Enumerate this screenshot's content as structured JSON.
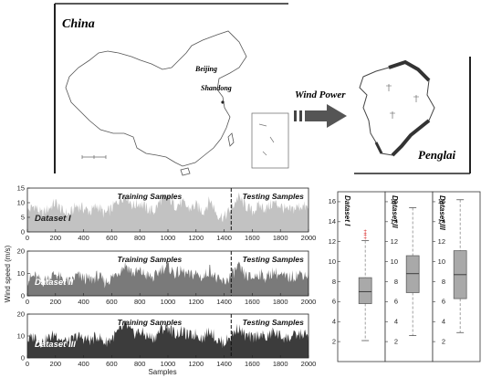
{
  "map": {
    "china_label": "China",
    "beijing_label": "Beijing",
    "shandong_label": "Shandong",
    "arrow_label": "Wind Power",
    "penglai_label": "Penglai"
  },
  "timeseries": {
    "ylabel": "Wind speed (m/s)",
    "xlabel": "Samples",
    "training_label": "Training Samples",
    "testing_label": "Testing Samples",
    "split_at": 1450
  },
  "boxplots": {
    "ylabel": "Wind speed(m/s)"
  },
  "colors": {
    "dataset1": "#c2c2c2",
    "dataset2": "#7a7a7a",
    "dataset3": "#3c3c3c",
    "box": "#a9a9a9",
    "outlier": "#d62020"
  },
  "chart_data": [
    {
      "type": "area",
      "name": "Dataset I",
      "title": "Dataset I",
      "x_range": [
        0,
        2000
      ],
      "ylim": [
        0,
        15
      ],
      "yticks": [
        0,
        5,
        10,
        15
      ],
      "xticks": [
        0,
        200,
        400,
        600,
        800,
        1000,
        1200,
        1400,
        1600,
        1800,
        2000
      ],
      "profile": [
        [
          0,
          7
        ],
        [
          50,
          9
        ],
        [
          100,
          6
        ],
        [
          150,
          8
        ],
        [
          200,
          10
        ],
        [
          250,
          7
        ],
        [
          300,
          6
        ],
        [
          350,
          9
        ],
        [
          400,
          8
        ],
        [
          450,
          7
        ],
        [
          500,
          9
        ],
        [
          550,
          6
        ],
        [
          600,
          8
        ],
        [
          650,
          11
        ],
        [
          700,
          13
        ],
        [
          750,
          9
        ],
        [
          800,
          10
        ],
        [
          850,
          8
        ],
        [
          900,
          7
        ],
        [
          950,
          11
        ],
        [
          1000,
          12
        ],
        [
          1050,
          9
        ],
        [
          1100,
          10
        ],
        [
          1150,
          8
        ],
        [
          1200,
          9
        ],
        [
          1250,
          7
        ],
        [
          1300,
          11
        ],
        [
          1350,
          6
        ],
        [
          1400,
          5
        ],
        [
          1450,
          8
        ],
        [
          1500,
          12
        ],
        [
          1550,
          9
        ],
        [
          1600,
          7
        ],
        [
          1650,
          9
        ],
        [
          1700,
          8
        ],
        [
          1750,
          10
        ],
        [
          1800,
          9
        ],
        [
          1850,
          7
        ],
        [
          1900,
          8
        ],
        [
          1950,
          9
        ],
        [
          2000,
          8
        ]
      ]
    },
    {
      "type": "area",
      "name": "Dataset II",
      "title": "Dataset II",
      "x_range": [
        0,
        2000
      ],
      "ylim": [
        0,
        20
      ],
      "yticks": [
        0,
        10,
        20
      ],
      "xticks": [
        0,
        200,
        400,
        600,
        800,
        1000,
        1200,
        1400,
        1600,
        1800,
        2000
      ],
      "profile": [
        [
          0,
          7
        ],
        [
          50,
          9
        ],
        [
          100,
          6
        ],
        [
          150,
          8
        ],
        [
          200,
          10
        ],
        [
          250,
          7
        ],
        [
          300,
          6
        ],
        [
          350,
          9
        ],
        [
          400,
          8
        ],
        [
          450,
          7
        ],
        [
          500,
          9
        ],
        [
          550,
          6
        ],
        [
          600,
          8
        ],
        [
          650,
          11
        ],
        [
          700,
          14
        ],
        [
          750,
          10
        ],
        [
          800,
          11
        ],
        [
          850,
          9
        ],
        [
          900,
          8
        ],
        [
          950,
          12
        ],
        [
          1000,
          13
        ],
        [
          1050,
          10
        ],
        [
          1100,
          11
        ],
        [
          1150,
          9
        ],
        [
          1200,
          10
        ],
        [
          1250,
          8
        ],
        [
          1300,
          12
        ],
        [
          1350,
          7
        ],
        [
          1400,
          6
        ],
        [
          1450,
          9
        ],
        [
          1500,
          13
        ],
        [
          1550,
          9
        ],
        [
          1600,
          8
        ],
        [
          1650,
          10
        ],
        [
          1700,
          8
        ],
        [
          1750,
          11
        ],
        [
          1800,
          9
        ],
        [
          1850,
          8
        ],
        [
          1900,
          9
        ],
        [
          1950,
          10
        ],
        [
          2000,
          9
        ]
      ]
    },
    {
      "type": "area",
      "name": "Dataset III",
      "title": "Dataset III",
      "x_range": [
        0,
        2000
      ],
      "ylim": [
        0,
        20
      ],
      "yticks": [
        0,
        10,
        20
      ],
      "xticks": [
        0,
        200,
        400,
        600,
        800,
        1000,
        1200,
        1400,
        1600,
        1800,
        2000
      ],
      "profile": [
        [
          0,
          8
        ],
        [
          50,
          10
        ],
        [
          100,
          7
        ],
        [
          150,
          9
        ],
        [
          200,
          11
        ],
        [
          250,
          8
        ],
        [
          300,
          7
        ],
        [
          350,
          10
        ],
        [
          400,
          9
        ],
        [
          450,
          8
        ],
        [
          500,
          10
        ],
        [
          550,
          7
        ],
        [
          600,
          9
        ],
        [
          650,
          12
        ],
        [
          700,
          15
        ],
        [
          750,
          11
        ],
        [
          800,
          12
        ],
        [
          850,
          10
        ],
        [
          900,
          9
        ],
        [
          950,
          13
        ],
        [
          1000,
          14
        ],
        [
          1050,
          11
        ],
        [
          1100,
          12
        ],
        [
          1150,
          10
        ],
        [
          1200,
          11
        ],
        [
          1250,
          9
        ],
        [
          1300,
          13
        ],
        [
          1350,
          8
        ],
        [
          1400,
          7
        ],
        [
          1450,
          10
        ],
        [
          1500,
          14
        ],
        [
          1550,
          10
        ],
        [
          1600,
          9
        ],
        [
          1650,
          11
        ],
        [
          1700,
          9
        ],
        [
          1750,
          12
        ],
        [
          1800,
          10
        ],
        [
          1850,
          9
        ],
        [
          1900,
          10
        ],
        [
          1950,
          11
        ],
        [
          2000,
          10
        ]
      ]
    },
    {
      "type": "box",
      "name": "Dataset I",
      "title": "Dataset I",
      "ylim": [
        0,
        17
      ],
      "yticks": [
        2,
        4,
        6,
        8,
        10,
        12,
        14,
        16
      ],
      "whisker_low": 2.1,
      "q1": 5.8,
      "median": 7.0,
      "q3": 8.4,
      "whisker_high": 12.1,
      "outliers": [
        12.4,
        12.7,
        12.9,
        13.1
      ]
    },
    {
      "type": "box",
      "name": "Dataset II",
      "title": "Dataset II",
      "ylim": [
        0,
        17
      ],
      "yticks": [
        2,
        4,
        6,
        8,
        10,
        12,
        14,
        16
      ],
      "whisker_low": 2.6,
      "q1": 6.9,
      "median": 8.8,
      "q3": 10.6,
      "whisker_high": 15.4,
      "outliers": []
    },
    {
      "type": "box",
      "name": "Dataset III",
      "title": "Dataset III",
      "ylim": [
        0,
        17
      ],
      "yticks": [
        2,
        4,
        6,
        8,
        10,
        12,
        14,
        16
      ],
      "whisker_low": 2.9,
      "q1": 6.3,
      "median": 8.7,
      "q3": 11.1,
      "whisker_high": 16.2,
      "outliers": []
    }
  ]
}
